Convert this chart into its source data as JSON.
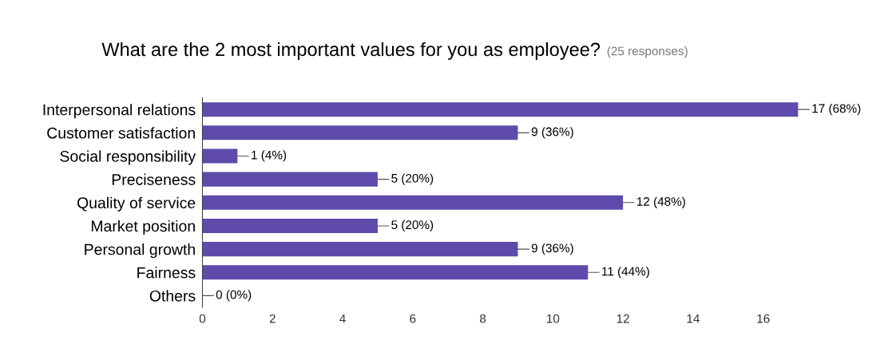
{
  "chart_data": {
    "type": "bar",
    "orientation": "horizontal",
    "title": "What are the 2 most important values for you as employee?",
    "subtitle": "(25 responses)",
    "categories": [
      "Interpersonal relations",
      "Customer satisfaction",
      "Social responsibility",
      "Preciseness",
      "Quality of service",
      "Market position",
      "Personal growth",
      "Fairness",
      "Others"
    ],
    "values": [
      17,
      9,
      1,
      5,
      12,
      5,
      9,
      11,
      0
    ],
    "value_labels": [
      "17 (68%)",
      "9 (36%)",
      "1 (4%)",
      "5 (20%)",
      "12 (48%)",
      "5 (20%)",
      "9 (36%)",
      "11 (44%)",
      "0 (0%)"
    ],
    "color": "#5e4bab",
    "xlim": [
      0,
      17
    ],
    "xticks": [
      0,
      2,
      4,
      6,
      8,
      10,
      12,
      14,
      16
    ],
    "grid": false,
    "legend": false
  }
}
